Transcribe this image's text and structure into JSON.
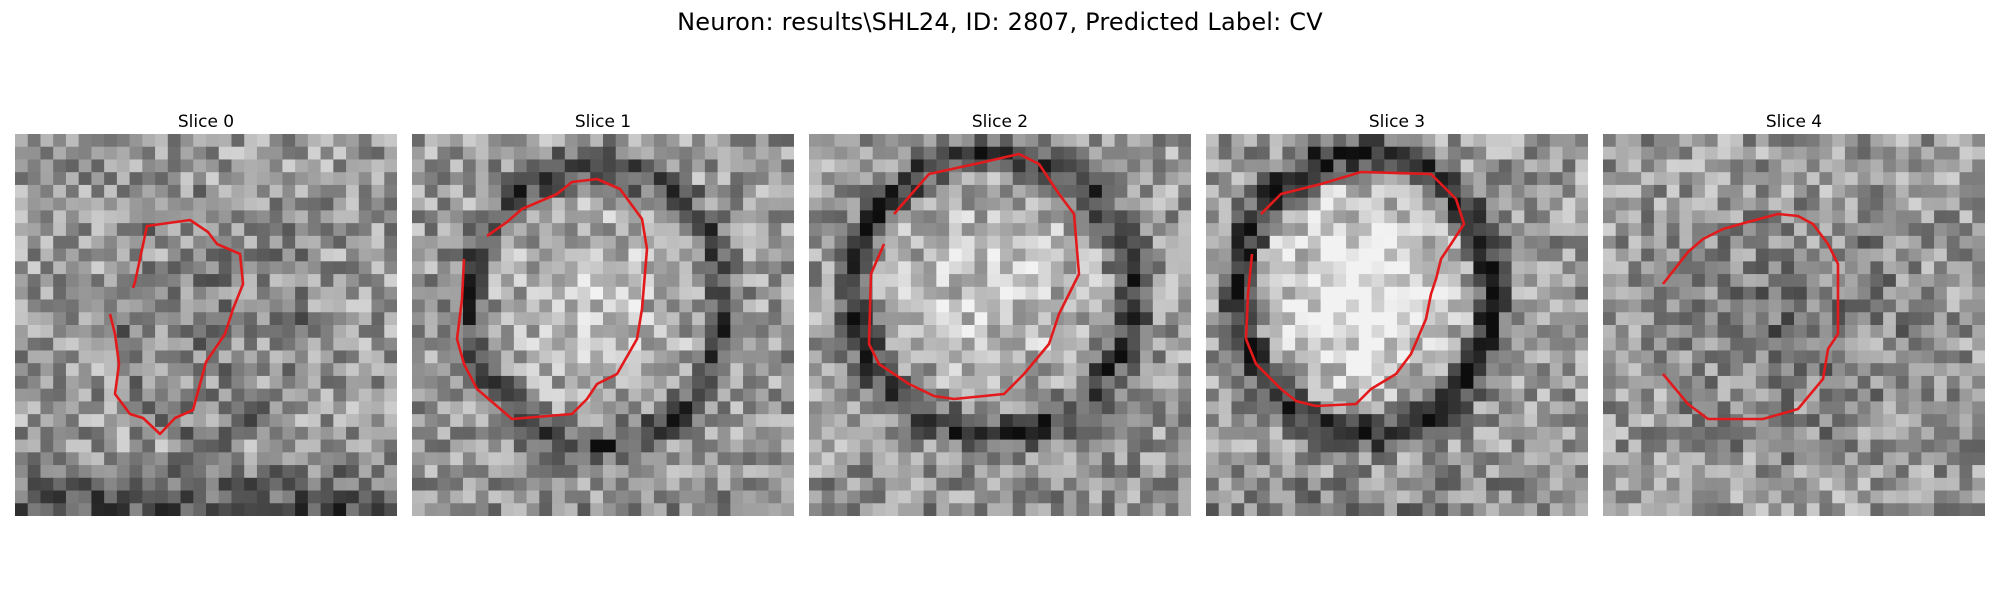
{
  "figure": {
    "title": "Neuron: results\\SHL24, ID: 2807, Predicted Label: CV"
  },
  "panels": [
    {
      "title": "Slice 0",
      "contour_color": "#e31a1c"
    },
    {
      "title": "Slice 1",
      "contour_color": "#e31a1c"
    },
    {
      "title": "Slice 2",
      "contour_color": "#e31a1c"
    },
    {
      "title": "Slice 3",
      "contour_color": "#e31a1c"
    },
    {
      "title": "Slice 4",
      "contour_color": "#e31a1c"
    }
  ]
}
